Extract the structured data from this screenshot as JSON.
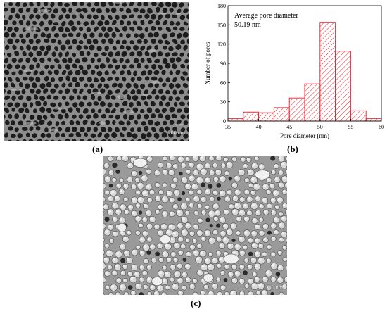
{
  "panels": {
    "a": {
      "label": "(a)",
      "scale_text": "200 nm"
    },
    "b": {
      "label": "(b)"
    },
    "c": {
      "label": "(c)",
      "scale_text": "200 nm"
    }
  },
  "chart_data": {
    "type": "bar",
    "title": "",
    "annotation": [
      "Average pore diameter",
      "50.19 nm"
    ],
    "xlabel": "Pore diameter (nm)",
    "ylabel": "Number of pores",
    "xlim": [
      35,
      60
    ],
    "ylim": [
      0,
      180
    ],
    "xticks": [
      35,
      40,
      45,
      50,
      55,
      60
    ],
    "yticks": [
      0,
      30,
      60,
      90,
      120,
      150,
      180
    ],
    "bin_width": 2.5,
    "bins": [
      {
        "start": 35.0,
        "value": 4
      },
      {
        "start": 37.5,
        "value": 14
      },
      {
        "start": 40.0,
        "value": 13
      },
      {
        "start": 42.5,
        "value": 21
      },
      {
        "start": 45.0,
        "value": 36
      },
      {
        "start": 47.5,
        "value": 58
      },
      {
        "start": 50.0,
        "value": 154
      },
      {
        "start": 52.5,
        "value": 109
      },
      {
        "start": 55.0,
        "value": 16
      },
      {
        "start": 57.5,
        "value": 4
      }
    ],
    "bar_color": "#e8202a",
    "hatch": "diagonal",
    "grid": false
  }
}
